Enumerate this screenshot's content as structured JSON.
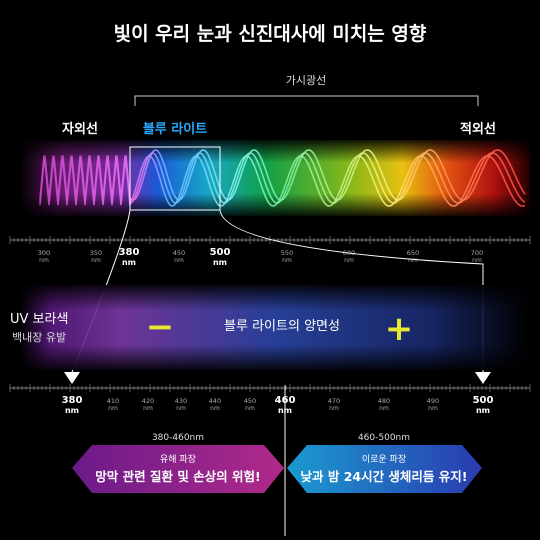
{
  "header": {
    "title": "빛이 우리 눈과 신진대사에 미치는 영향"
  },
  "spectrum": {
    "visible_label": "가시광선",
    "uv_label": "자외선",
    "blue_label": "블루 라이트",
    "ir_label": "적외선",
    "ruler": [
      {
        "value": "300",
        "unit": "nm"
      },
      {
        "value": "350",
        "unit": "nm"
      },
      {
        "value": "380",
        "unit": "nm"
      },
      {
        "value": "450",
        "unit": "nm"
      },
      {
        "value": "500",
        "unit": "nm"
      },
      {
        "value": "550",
        "unit": "nm"
      },
      {
        "value": "600",
        "unit": "nm"
      },
      {
        "value": "650",
        "unit": "nm"
      },
      {
        "value": "700",
        "unit": "nm"
      }
    ]
  },
  "detail": {
    "uv_title": "UV 보라색",
    "uv_note": "백내장 유발",
    "minus": "−",
    "caption": "블루 라이트의 양면성",
    "plus": "+",
    "ruler": [
      {
        "value": "380",
        "unit": "nm"
      },
      {
        "value": "410",
        "unit": "nm"
      },
      {
        "value": "420",
        "unit": "nm"
      },
      {
        "value": "430",
        "unit": "nm"
      },
      {
        "value": "440",
        "unit": "nm"
      },
      {
        "value": "450",
        "unit": "nm"
      },
      {
        "value": "460",
        "unit": "nm"
      },
      {
        "value": "470",
        "unit": "nm"
      },
      {
        "value": "480",
        "unit": "nm"
      },
      {
        "value": "490",
        "unit": "nm"
      },
      {
        "value": "500",
        "unit": "nm"
      }
    ]
  },
  "ranges": [
    {
      "range": "380-460nm",
      "tag": "유해 파장",
      "message": "망막 관련 질환 및 손상의 위험!"
    },
    {
      "range": "460-500nm",
      "tag": "이로운 파장",
      "message": "낮과 밤 24시간 생체리듬 유지!"
    }
  ]
}
